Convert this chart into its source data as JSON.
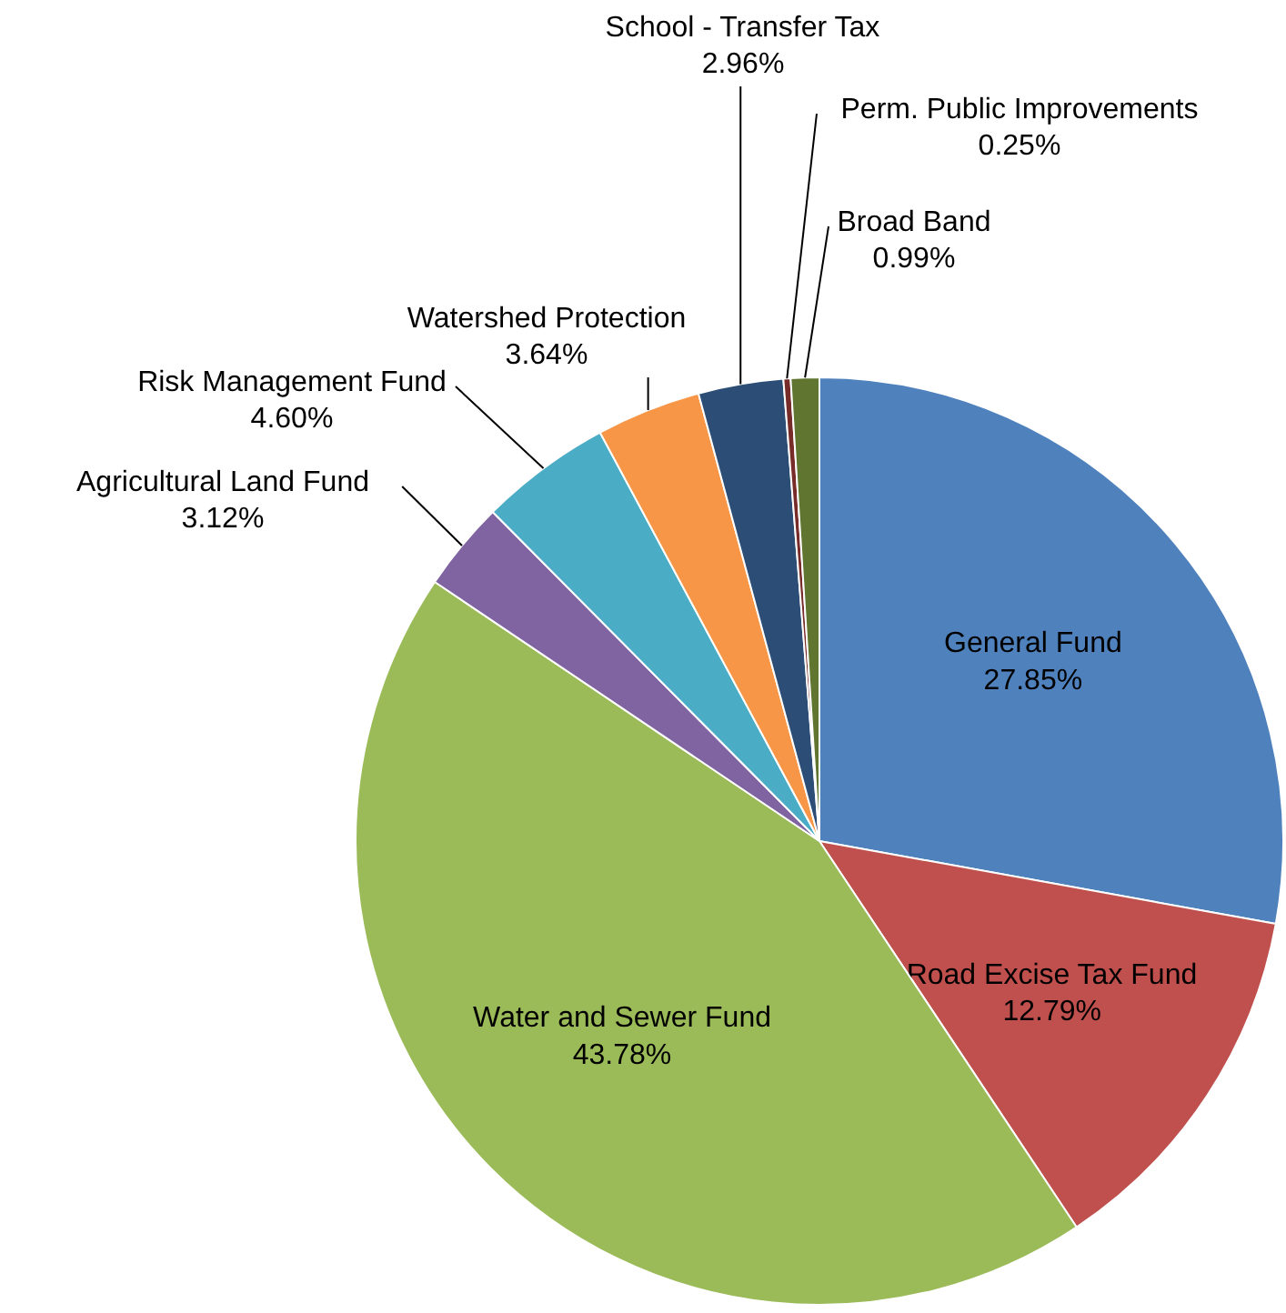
{
  "chart_data": {
    "type": "pie",
    "categories": [
      "General Fund",
      "Road Excise Tax Fund",
      "Water and Sewer Fund",
      "Agricultural Land Fund",
      "Risk Management Fund",
      "Watershed Protection",
      "School - Transfer Tax",
      "Perm. Public Improvements",
      "Broad Band"
    ],
    "values": [
      27.85,
      12.79,
      43.78,
      3.12,
      4.6,
      3.64,
      2.96,
      0.25,
      0.99
    ],
    "value_labels": [
      "27.85%",
      "12.79%",
      "43.78%",
      "3.12%",
      "4.60%",
      "3.64%",
      "2.96%",
      "0.25%",
      "0.99%"
    ],
    "colors": [
      "#4f81bd",
      "#c0504d",
      "#9bbb59",
      "#8064a2",
      "#4bacc6",
      "#f79646",
      "#2c4d75",
      "#772c2a",
      "#5f7530"
    ],
    "legend": false
  }
}
